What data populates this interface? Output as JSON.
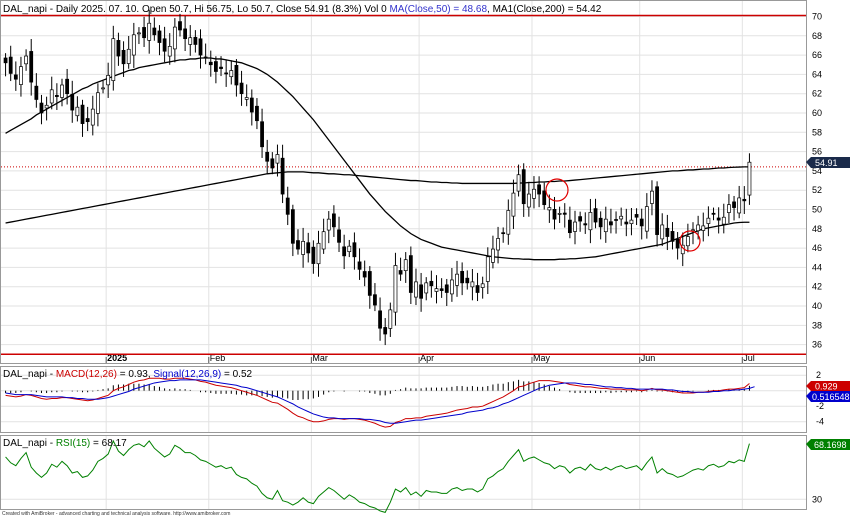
{
  "price_panel": {
    "symbol": "DAL_napi",
    "period": "Daily",
    "date": "2025. 07. 10.",
    "open": "50.7",
    "high": "56.75",
    "low": "50.7",
    "close": "54.91",
    "change_pct": "8.3%",
    "volume": "0",
    "ma_label": "MA(Close,50)",
    "ma_value": "48.68",
    "ma1_label": "MA1(Close,200)",
    "ma1_value": "54.42",
    "last_price_badge": "54.91",
    "colors": {
      "ma50": "#3333cc",
      "ma200": "#000000",
      "hlines": "#cc0000",
      "up": "#ffffff",
      "down": "#000000"
    }
  },
  "macd_panel": {
    "symbol": "DAL_napi",
    "macd_label": "MACD(12,26)",
    "macd_value": "0.93",
    "signal_label": "Signal(12,26,9)",
    "signal_value": "0.52",
    "badge_macd": "0.929",
    "badge_signal": "0.516548",
    "colors": {
      "macd": "#cc0000",
      "signal": "#0000cc"
    }
  },
  "rsi_panel": {
    "symbol": "DAL_napi",
    "rsi_label": "RSI(15)",
    "rsi_value": "68.17",
    "badge_rsi": "68.1698",
    "colors": {
      "rsi": "#008000"
    }
  },
  "footer": "Created with AmiBroker - advanced charting and technical analysis software. http://www.amibroker.com",
  "chart_data": [
    {
      "type": "candlestick",
      "title": "DAL_napi - Daily 2025. 07. 10.",
      "x_labels": [
        "2025",
        "Feb",
        "Mar",
        "Apr",
        "May",
        "Jun",
        "Jul"
      ],
      "y_ticks": [
        36,
        38,
        40,
        42,
        44,
        46,
        48,
        50,
        52,
        54,
        56,
        58,
        60,
        62,
        64,
        66,
        68,
        70
      ],
      "ylim": [
        34.2,
        71.5
      ],
      "horizontal_lines": [
        70.1,
        35.0
      ],
      "dotted_line": 54.42,
      "grid": true,
      "close": [
        65.2,
        64.1,
        63.5,
        64.8,
        65.9,
        63.2,
        61.4,
        60.0,
        60.8,
        62.4,
        61.7,
        62.9,
        62.0,
        60.3,
        60.6,
        58.9,
        59.1,
        60.4,
        62.1,
        62.6,
        63.9,
        67.7,
        65.9,
        65.1,
        66.6,
        68.1,
        68.3,
        67.8,
        69.3,
        68.1,
        67.3,
        66.4,
        66.9,
        68.9,
        68.6,
        67.7,
        67.8,
        67.1,
        66.0,
        65.8,
        65.0,
        64.3,
        64.6,
        64.1,
        64.4,
        62.9,
        62.0,
        61.6,
        60.1,
        59.2,
        56.5,
        55.0,
        54.3,
        55.7,
        51.6,
        49.5,
        46.5,
        45.9,
        46.7,
        45.5,
        44.4,
        46.5,
        47.7,
        49.0,
        48.2,
        46.6,
        45.2,
        46.2,
        45.1,
        43.8,
        43.0,
        41.1,
        40.1,
        37.7,
        37.1,
        39.6,
        44.2,
        43.3,
        44.8,
        41.4,
        42.5,
        40.8,
        42.4,
        42.1,
        41.8,
        41.6,
        41.4,
        42.7,
        43.3,
        42.4,
        42.4,
        42.5,
        41.4,
        42.3,
        45.1,
        45.9,
        47.0,
        47.5,
        49.9,
        51.7,
        53.6,
        50.6,
        51.6,
        52.1,
        51.6,
        50.5,
        50.2,
        49.0,
        49.6,
        49.5,
        47.6,
        48.7,
        48.8,
        48.4,
        49.7,
        48.7,
        48.2,
        49.0,
        48.4,
        48.9,
        49.3,
        48.5,
        48.9,
        49.2,
        48.3,
        50.3,
        51.9,
        47.4,
        48.4,
        47.2,
        46.7,
        46.0,
        46.3,
        47.2,
        47.9,
        48.4,
        48.3,
        49.1,
        49.5,
        48.9,
        49.2,
        50.5,
        50.2,
        51.2,
        50.9,
        54.9
      ],
      "series": [
        {
          "name": "MA(Close,50)",
          "values": [
            57.9,
            58.2,
            58.5,
            58.8,
            59.1,
            59.4,
            59.8,
            60.1,
            60.4,
            60.7,
            61.0,
            61.3,
            61.6,
            61.9,
            62.2,
            62.5,
            62.7,
            63.0,
            63.2,
            63.4,
            63.6,
            63.8,
            64.0,
            64.2,
            64.4,
            64.5,
            64.7,
            64.8,
            64.9,
            65.0,
            65.1,
            65.2,
            65.3,
            65.4,
            65.5,
            65.5,
            65.6,
            65.6,
            65.7,
            65.7,
            65.7,
            65.6,
            65.6,
            65.5,
            65.4,
            65.3,
            65.2,
            65.0,
            64.8,
            64.6,
            64.3,
            64.0,
            63.6,
            63.2,
            62.7,
            62.2,
            61.7,
            61.1,
            60.5,
            59.9,
            59.3,
            58.6,
            57.9,
            57.2,
            56.5,
            55.8,
            55.1,
            54.4,
            53.7,
            53.0,
            52.3,
            51.6,
            51.0,
            50.4,
            49.8,
            49.3,
            48.8,
            48.3,
            47.9,
            47.5,
            47.2,
            46.9,
            46.7,
            46.5,
            46.3,
            46.1,
            46.0,
            45.9,
            45.8,
            45.7,
            45.6,
            45.5,
            45.4,
            45.3,
            45.2,
            45.1,
            45.05,
            45.0,
            44.95,
            44.9,
            44.9,
            44.85,
            44.85,
            44.8,
            44.8,
            44.8,
            44.8,
            44.8,
            44.85,
            44.85,
            44.9,
            44.9,
            44.95,
            45.0,
            45.05,
            45.1,
            45.2,
            45.3,
            45.4,
            45.5,
            45.6,
            45.7,
            45.8,
            45.9,
            46.0,
            46.1,
            46.2,
            46.3,
            46.4,
            46.6,
            46.8,
            47.0,
            47.2,
            47.4,
            47.6,
            47.8,
            48.0,
            48.1,
            48.2,
            48.3,
            48.4,
            48.5,
            48.6,
            48.65,
            48.68,
            48.68
          ]
        },
        {
          "name": "MA1(Close,200)",
          "values": [
            48.6,
            48.7,
            48.8,
            48.9,
            49.0,
            49.1,
            49.2,
            49.3,
            49.4,
            49.5,
            49.6,
            49.7,
            49.8,
            49.9,
            50.0,
            50.1,
            50.2,
            50.3,
            50.4,
            50.5,
            50.6,
            50.7,
            50.8,
            50.9,
            51.0,
            51.1,
            51.2,
            51.3,
            51.4,
            51.5,
            51.6,
            51.7,
            51.8,
            51.9,
            52.0,
            52.1,
            52.2,
            52.3,
            52.4,
            52.5,
            52.6,
            52.7,
            52.8,
            52.9,
            53.0,
            53.1,
            53.2,
            53.3,
            53.4,
            53.5,
            53.6,
            53.7,
            53.75,
            53.8,
            53.85,
            53.9,
            53.9,
            53.9,
            53.9,
            53.85,
            53.8,
            53.8,
            53.75,
            53.7,
            53.7,
            53.65,
            53.6,
            53.6,
            53.55,
            53.5,
            53.45,
            53.4,
            53.35,
            53.3,
            53.25,
            53.2,
            53.15,
            53.1,
            53.05,
            53.0,
            53.0,
            52.95,
            52.9,
            52.85,
            52.85,
            52.8,
            52.8,
            52.75,
            52.75,
            52.7,
            52.7,
            52.7,
            52.7,
            52.7,
            52.7,
            52.7,
            52.7,
            52.7,
            52.7,
            52.7,
            52.75,
            52.75,
            52.8,
            52.8,
            52.85,
            52.85,
            52.9,
            52.9,
            52.95,
            52.95,
            53.0,
            53.05,
            53.1,
            53.15,
            53.2,
            53.25,
            53.3,
            53.35,
            53.4,
            53.45,
            53.5,
            53.55,
            53.6,
            53.65,
            53.7,
            53.75,
            53.8,
            53.85,
            53.9,
            53.95,
            54.0,
            54.0,
            54.05,
            54.1,
            54.1,
            54.15,
            54.2,
            54.2,
            54.25,
            54.3,
            54.3,
            54.35,
            54.38,
            54.4,
            54.42,
            54.42
          ]
        }
      ]
    },
    {
      "type": "line",
      "title": "DAL_napi - MACD(12,26) = 0.93, Signal(12,26,9) = 0.52",
      "y_ticks": [
        2,
        0,
        -2,
        -4
      ],
      "ylim": [
        -5.2,
        2.8
      ],
      "grid": true,
      "series": [
        {
          "name": "MACD(12,26)",
          "values": [
            -0.6,
            -0.7,
            -0.8,
            -0.7,
            -0.5,
            -0.6,
            -0.8,
            -1.0,
            -1.1,
            -1.0,
            -1.0,
            -0.9,
            -0.9,
            -1.0,
            -1.1,
            -1.2,
            -1.3,
            -1.2,
            -1.0,
            -0.8,
            -0.6,
            0.0,
            0.3,
            0.5,
            0.8,
            1.1,
            1.3,
            1.4,
            1.6,
            1.6,
            1.6,
            1.5,
            1.5,
            1.6,
            1.6,
            1.6,
            1.5,
            1.4,
            1.2,
            1.1,
            0.9,
            0.7,
            0.6,
            0.5,
            0.4,
            0.2,
            0.0,
            -0.2,
            -0.4,
            -0.6,
            -0.9,
            -1.2,
            -1.5,
            -1.6,
            -2.0,
            -2.4,
            -2.9,
            -3.3,
            -3.5,
            -3.8,
            -4.0,
            -4.0,
            -3.9,
            -3.7,
            -3.6,
            -3.6,
            -3.7,
            -3.6,
            -3.6,
            -3.7,
            -3.8,
            -4.0,
            -4.2,
            -4.5,
            -4.7,
            -4.6,
            -4.1,
            -3.9,
            -3.6,
            -3.6,
            -3.5,
            -3.5,
            -3.3,
            -3.2,
            -3.1,
            -3.0,
            -2.9,
            -2.7,
            -2.5,
            -2.4,
            -2.3,
            -2.1,
            -2.1,
            -2.0,
            -1.7,
            -1.4,
            -1.1,
            -0.8,
            -0.4,
            0.0,
            0.5,
            0.6,
            0.9,
            1.1,
            1.3,
            1.3,
            1.3,
            1.2,
            1.1,
            1.0,
            0.8,
            0.7,
            0.6,
            0.5,
            0.5,
            0.4,
            0.3,
            0.3,
            0.2,
            0.2,
            0.2,
            0.1,
            0.1,
            0.1,
            0.0,
            0.1,
            0.3,
            0.1,
            0.1,
            0.0,
            -0.1,
            -0.2,
            -0.3,
            -0.3,
            -0.3,
            -0.2,
            -0.2,
            -0.1,
            0.0,
            0.0,
            0.1,
            0.2,
            0.2,
            0.3,
            0.4,
            0.93
          ]
        },
        {
          "name": "Signal(12,26,9)",
          "values": [
            -0.3,
            -0.4,
            -0.5,
            -0.5,
            -0.5,
            -0.5,
            -0.6,
            -0.7,
            -0.8,
            -0.8,
            -0.8,
            -0.8,
            -0.9,
            -0.9,
            -1.0,
            -1.0,
            -1.1,
            -1.1,
            -1.1,
            -1.0,
            -0.9,
            -0.7,
            -0.5,
            -0.3,
            -0.1,
            0.2,
            0.4,
            0.6,
            0.8,
            1.0,
            1.1,
            1.2,
            1.3,
            1.3,
            1.4,
            1.4,
            1.4,
            1.4,
            1.4,
            1.3,
            1.2,
            1.1,
            1.0,
            0.9,
            0.8,
            0.7,
            0.5,
            0.4,
            0.2,
            0.0,
            -0.2,
            -0.4,
            -0.6,
            -0.8,
            -1.1,
            -1.4,
            -1.7,
            -2.1,
            -2.4,
            -2.7,
            -3.0,
            -3.2,
            -3.4,
            -3.5,
            -3.5,
            -3.6,
            -3.6,
            -3.6,
            -3.6,
            -3.6,
            -3.7,
            -3.7,
            -3.8,
            -3.9,
            -4.1,
            -4.2,
            -4.2,
            -4.1,
            -4.0,
            -3.9,
            -3.8,
            -3.8,
            -3.7,
            -3.6,
            -3.5,
            -3.4,
            -3.3,
            -3.2,
            -3.1,
            -3.0,
            -2.8,
            -2.7,
            -2.6,
            -2.5,
            -2.3,
            -2.2,
            -2.0,
            -1.7,
            -1.5,
            -1.2,
            -0.9,
            -0.6,
            -0.3,
            0.0,
            0.3,
            0.5,
            0.7,
            0.8,
            0.9,
            1.0,
            1.0,
            1.0,
            0.9,
            0.8,
            0.8,
            0.7,
            0.6,
            0.5,
            0.5,
            0.4,
            0.4,
            0.3,
            0.3,
            0.2,
            0.2,
            0.2,
            0.2,
            0.2,
            0.2,
            0.1,
            0.1,
            0.0,
            -0.1,
            -0.1,
            -0.2,
            -0.2,
            -0.2,
            -0.2,
            -0.1,
            -0.1,
            0.0,
            0.0,
            0.1,
            0.1,
            0.2,
            0.3,
            0.52
          ]
        }
      ]
    },
    {
      "type": "line",
      "title": "DAL_napi - RSI(15) = 68.17",
      "y_ticks": [
        30
      ],
      "ylim": [
        24,
        72
      ],
      "grid": true,
      "series": [
        {
          "name": "RSI(15)",
          "values": [
            59,
            55,
            53,
            58,
            62,
            52,
            48,
            45,
            48,
            54,
            52,
            56,
            53,
            48,
            49,
            45,
            46,
            50,
            56,
            58,
            61,
            70,
            63,
            60,
            64,
            67,
            68,
            66,
            70,
            65,
            62,
            59,
            61,
            67,
            65,
            62,
            62,
            60,
            57,
            56,
            54,
            52,
            53,
            51,
            52,
            47,
            45,
            44,
            41,
            39,
            34,
            31,
            30,
            36,
            29,
            28,
            26,
            28,
            31,
            28,
            27,
            32,
            35,
            38,
            36,
            33,
            30,
            33,
            31,
            28,
            27,
            25,
            24,
            22,
            21,
            28,
            37,
            35,
            38,
            33,
            35,
            32,
            36,
            35,
            35,
            34,
            34,
            37,
            38,
            36,
            37,
            37,
            35,
            37,
            44,
            46,
            49,
            51,
            56,
            60,
            64,
            56,
            58,
            59,
            57,
            55,
            54,
            51,
            53,
            52,
            48,
            51,
            52,
            50,
            54,
            51,
            50,
            52,
            50,
            52,
            53,
            51,
            52,
            53,
            50,
            55,
            59,
            48,
            51,
            48,
            47,
            45,
            46,
            48,
            50,
            51,
            50,
            53,
            54,
            52,
            53,
            56,
            55,
            57,
            56,
            68.17
          ]
        }
      ]
    }
  ]
}
